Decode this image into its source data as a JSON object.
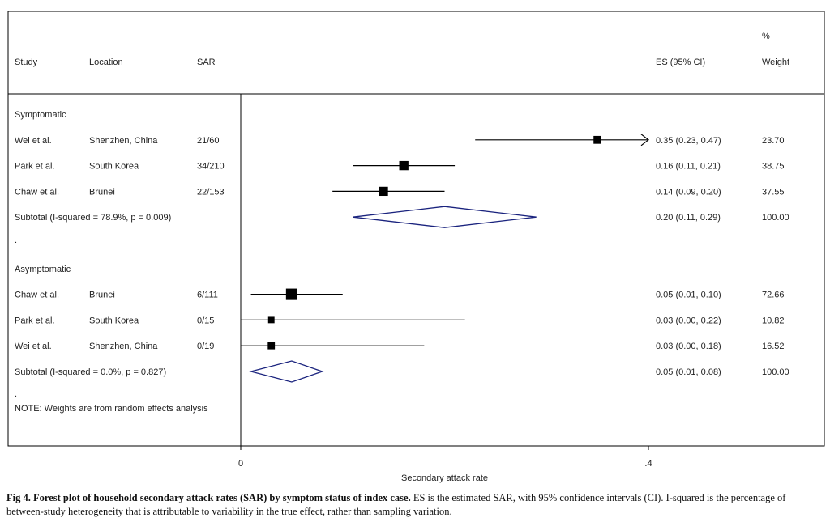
{
  "chart_data": {
    "type": "forest",
    "columns": {
      "study": "Study",
      "location": "Location",
      "sar": "SAR",
      "es": "ES (95% CI)",
      "weight_line1": "%",
      "weight_line2": "Weight"
    },
    "groups": [
      {
        "label": "Symptomatic",
        "studies": [
          {
            "study": "Wei et al.",
            "location": "Shenzhen, China",
            "sar": "21/60",
            "es": 0.35,
            "lo": 0.23,
            "hi": 0.47,
            "es_text": "0.35 (0.23, 0.47)",
            "weight": "23.70",
            "weight_value": 23.7
          },
          {
            "study": "Park et al.",
            "location": "South Korea",
            "sar": "34/210",
            "es": 0.16,
            "lo": 0.11,
            "hi": 0.21,
            "es_text": "0.16 (0.11, 0.21)",
            "weight": "38.75",
            "weight_value": 38.75
          },
          {
            "study": "Chaw et al.",
            "location": "Brunei",
            "sar": "22/153",
            "es": 0.14,
            "lo": 0.09,
            "hi": 0.2,
            "es_text": "0.14 (0.09, 0.20)",
            "weight": "37.55",
            "weight_value": 37.55
          }
        ],
        "subtotal": {
          "label": "Subtotal  (I-squared = 78.9%, p = 0.009)",
          "es": 0.2,
          "lo": 0.11,
          "hi": 0.29,
          "es_text": "0.20 (0.11, 0.29)",
          "weight": "100.00"
        }
      },
      {
        "label": "Asymptomatic",
        "studies": [
          {
            "study": "Chaw et al.",
            "location": "Brunei",
            "sar": "6/111",
            "es": 0.05,
            "lo": 0.01,
            "hi": 0.1,
            "es_text": "0.05 (0.01, 0.10)",
            "weight": "72.66",
            "weight_value": 72.66
          },
          {
            "study": "Park et al.",
            "location": "South Korea",
            "sar": "0/15",
            "es": 0.03,
            "lo": 0.0,
            "hi": 0.22,
            "es_text": "0.03 (0.00, 0.22)",
            "weight": "10.82",
            "weight_value": 10.82
          },
          {
            "study": "Wei et al.",
            "location": "Shenzhen, China",
            "sar": "0/19",
            "es": 0.03,
            "lo": 0.0,
            "hi": 0.18,
            "es_text": "0.03 (0.00, 0.18)",
            "weight": "16.52",
            "weight_value": 16.52
          }
        ],
        "subtotal": {
          "label": "Subtotal  (I-squared = 0.0%, p = 0.827)",
          "es": 0.05,
          "lo": 0.01,
          "hi": 0.08,
          "es_text": "0.05 (0.01, 0.08)",
          "weight": "100.00"
        }
      }
    ],
    "separator_dot": ".",
    "note_dot": ".",
    "note": "NOTE: Weights are from random effects analysis",
    "x_axis": {
      "label": "Secondary attack rate",
      "ticks": [
        0,
        0.4
      ],
      "tick_labels": [
        "0",
        ".4"
      ],
      "range": [
        0,
        0.4
      ],
      "right_arrow_clipped": true
    },
    "colors": {
      "square": "#000000",
      "ci_line": "#000000",
      "diamond": "#1a237e",
      "frame": "#000000"
    }
  },
  "caption": {
    "bold": "Fig 4.  Forest plot of household secondary attack rates (SAR) by symptom status of index case.",
    "text": " ES is the estimated SAR, with 95% confidence intervals (CI). I-squared is the percentage of between-study heterogeneity that is attributable to variability in the true effect, rather than sampling variation."
  }
}
